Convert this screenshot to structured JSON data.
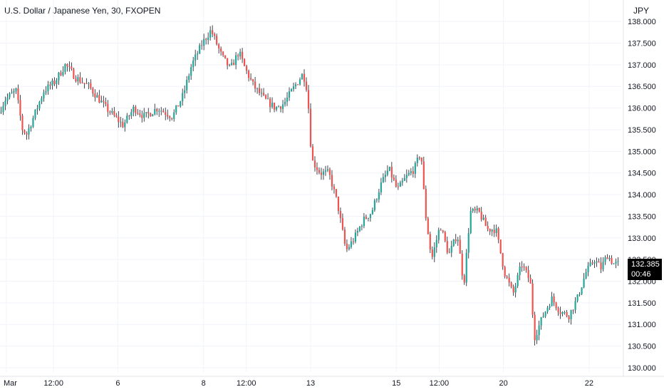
{
  "header": {
    "title": "U.S. Dollar / Japanese Yen, 30, FXOPEN",
    "currency": "JPY"
  },
  "price_tag": {
    "price": "132.385",
    "countdown": "00:46"
  },
  "colors": {
    "up": "#26a69a",
    "down": "#ef5350",
    "wick": "#131722",
    "grid": "#f0f3fa",
    "tag_bg": "#000000"
  },
  "chart_data": {
    "type": "candlestick",
    "timeframe": "30",
    "y_axis_position": "right",
    "ylim": [
      129.9,
      138.2
    ],
    "y_ticks": [
      "130.000",
      "130.500",
      "131.000",
      "131.500",
      "132.000",
      "132.500",
      "133.000",
      "133.500",
      "134.000",
      "134.500",
      "135.000",
      "135.500",
      "136.000",
      "136.500",
      "137.000",
      "137.500",
      "138.000"
    ],
    "x_ticks": [
      "Mar",
      "12:00",
      "6",
      "8",
      "12:00",
      "13",
      "15",
      "12:00",
      "20",
      "22"
    ],
    "x_tick_positions": [
      0.3,
      2.5,
      5.5,
      9.5,
      11.5,
      14.5,
      18.5,
      20.5,
      23.5,
      27.5
    ],
    "x_range": [
      0,
      29
    ],
    "price_path": [
      {
        "t": 0.0,
        "p": 135.9
      },
      {
        "t": 0.3,
        "p": 136.2
      },
      {
        "t": 0.8,
        "p": 136.4
      },
      {
        "t": 1.1,
        "p": 135.5
      },
      {
        "t": 1.3,
        "p": 135.4
      },
      {
        "t": 1.7,
        "p": 135.9
      },
      {
        "t": 2.1,
        "p": 136.4
      },
      {
        "t": 2.6,
        "p": 136.6
      },
      {
        "t": 3.1,
        "p": 137.0
      },
      {
        "t": 3.6,
        "p": 136.7
      },
      {
        "t": 4.2,
        "p": 136.5
      },
      {
        "t": 5.0,
        "p": 136.0
      },
      {
        "t": 5.8,
        "p": 135.6
      },
      {
        "t": 6.3,
        "p": 136.0
      },
      {
        "t": 6.8,
        "p": 135.8
      },
      {
        "t": 7.4,
        "p": 136.0
      },
      {
        "t": 8.1,
        "p": 135.8
      },
      {
        "t": 8.6,
        "p": 136.3
      },
      {
        "t": 9.0,
        "p": 137.0
      },
      {
        "t": 9.5,
        "p": 137.5
      },
      {
        "t": 9.9,
        "p": 137.8
      },
      {
        "t": 10.4,
        "p": 137.2
      },
      {
        "t": 10.8,
        "p": 136.9
      },
      {
        "t": 11.2,
        "p": 137.3
      },
      {
        "t": 11.5,
        "p": 136.9
      },
      {
        "t": 11.9,
        "p": 136.5
      },
      {
        "t": 12.4,
        "p": 136.2
      },
      {
        "t": 12.9,
        "p": 136.0
      },
      {
        "t": 13.3,
        "p": 136.1
      },
      {
        "t": 13.8,
        "p": 136.5
      },
      {
        "t": 14.2,
        "p": 136.8
      },
      {
        "t": 14.4,
        "p": 136.4
      },
      {
        "t": 14.6,
        "p": 134.8
      },
      {
        "t": 15.0,
        "p": 134.5
      },
      {
        "t": 15.4,
        "p": 134.5
      },
      {
        "t": 15.8,
        "p": 133.8
      },
      {
        "t": 16.2,
        "p": 132.7
      },
      {
        "t": 16.6,
        "p": 133.0
      },
      {
        "t": 17.0,
        "p": 133.4
      },
      {
        "t": 17.4,
        "p": 133.6
      },
      {
        "t": 17.8,
        "p": 134.2
      },
      {
        "t": 18.2,
        "p": 134.6
      },
      {
        "t": 18.6,
        "p": 134.1
      },
      {
        "t": 19.0,
        "p": 134.4
      },
      {
        "t": 19.4,
        "p": 134.6
      },
      {
        "t": 19.7,
        "p": 135.0
      },
      {
        "t": 19.9,
        "p": 133.6
      },
      {
        "t": 20.2,
        "p": 132.5
      },
      {
        "t": 20.6,
        "p": 133.3
      },
      {
        "t": 21.0,
        "p": 132.6
      },
      {
        "t": 21.4,
        "p": 133.1
      },
      {
        "t": 21.7,
        "p": 131.9
      },
      {
        "t": 22.0,
        "p": 133.6
      },
      {
        "t": 22.4,
        "p": 133.6
      },
      {
        "t": 22.8,
        "p": 133.2
      },
      {
        "t": 23.2,
        "p": 133.2
      },
      {
        "t": 23.6,
        "p": 132.2
      },
      {
        "t": 24.0,
        "p": 131.7
      },
      {
        "t": 24.4,
        "p": 132.4
      },
      {
        "t": 24.8,
        "p": 132.0
      },
      {
        "t": 25.0,
        "p": 130.7
      },
      {
        "t": 25.4,
        "p": 131.2
      },
      {
        "t": 25.8,
        "p": 131.6
      },
      {
        "t": 26.2,
        "p": 131.3
      },
      {
        "t": 26.6,
        "p": 131.2
      },
      {
        "t": 27.0,
        "p": 131.6
      },
      {
        "t": 27.4,
        "p": 132.2
      },
      {
        "t": 27.8,
        "p": 132.5
      },
      {
        "t": 28.1,
        "p": 132.3
      },
      {
        "t": 28.4,
        "p": 132.6
      },
      {
        "t": 28.7,
        "p": 132.4
      },
      {
        "t": 28.9,
        "p": 132.4
      }
    ],
    "last_price": 132.385
  }
}
